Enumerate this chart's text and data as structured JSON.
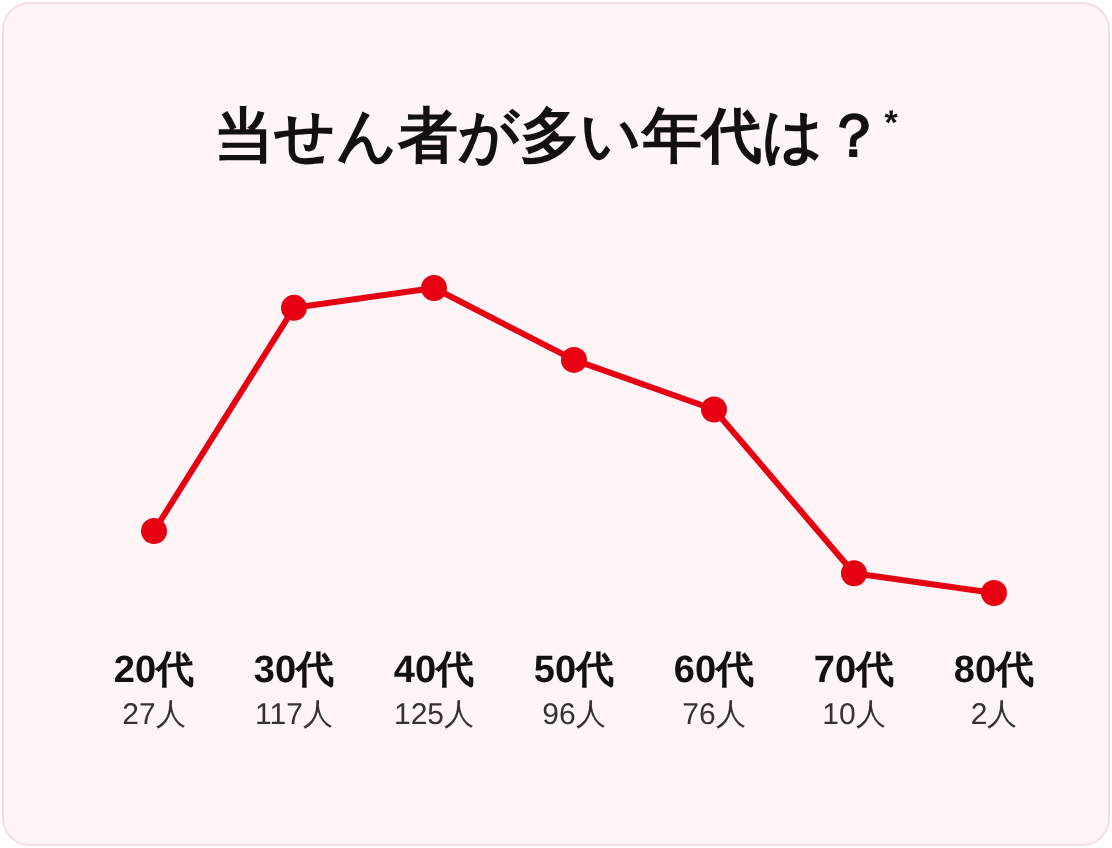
{
  "chart_data": {
    "type": "line",
    "title": "当せん者が多い年代は？$^{*}$",
    "categories": [
      "20代",
      "30代",
      "40代",
      "50代",
      "60代",
      "70代",
      "80代"
    ],
    "marker": "circle",
    "series": [
      {
        "color": "#e60012",
        "values": [
          27,
          117,
          125,
          96,
          76,
          10,
          2
        ],
        "value_labels": [
          "27人",
          "117人",
          "125人",
          "96人",
          "76人",
          "10人",
          "2人"
        ]
      }
    ]
  }
}
